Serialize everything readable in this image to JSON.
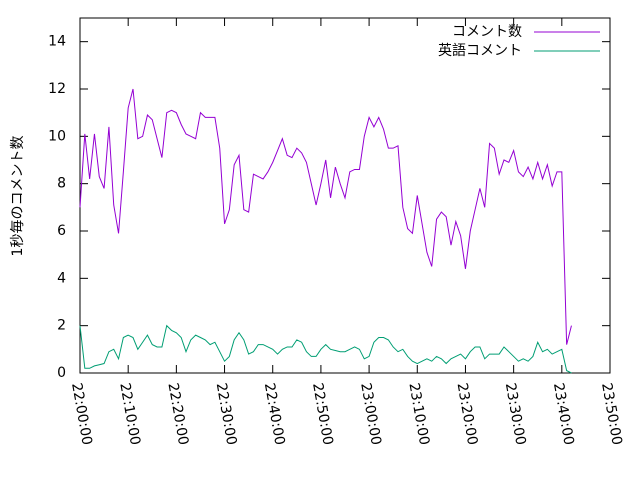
{
  "chart_data": {
    "type": "line",
    "y_label": "1秒毎のコメント数",
    "x": [
      "22:00:00",
      "22:01:00",
      "22:02:00",
      "22:03:00",
      "22:04:00",
      "22:05:00",
      "22:06:00",
      "22:07:00",
      "22:08:00",
      "22:09:00",
      "22:10:00",
      "22:11:00",
      "22:12:00",
      "22:13:00",
      "22:14:00",
      "22:15:00",
      "22:16:00",
      "22:17:00",
      "22:18:00",
      "22:19:00",
      "22:20:00",
      "22:21:00",
      "22:22:00",
      "22:23:00",
      "22:24:00",
      "22:25:00",
      "22:26:00",
      "22:27:00",
      "22:28:00",
      "22:29:00",
      "22:30:00",
      "22:31:00",
      "22:32:00",
      "22:33:00",
      "22:34:00",
      "22:35:00",
      "22:36:00",
      "22:37:00",
      "22:38:00",
      "22:39:00",
      "22:40:00",
      "22:41:00",
      "22:42:00",
      "22:43:00",
      "22:44:00",
      "22:45:00",
      "22:46:00",
      "22:47:00",
      "22:48:00",
      "22:49:00",
      "22:50:00",
      "22:51:00",
      "22:52:00",
      "22:53:00",
      "22:54:00",
      "22:55:00",
      "22:56:00",
      "22:57:00",
      "22:58:00",
      "22:59:00",
      "23:00:00",
      "23:01:00",
      "23:02:00",
      "23:03:00",
      "23:04:00",
      "23:05:00",
      "23:06:00",
      "23:07:00",
      "23:08:00",
      "23:09:00",
      "23:10:00",
      "23:11:00",
      "23:12:00",
      "23:13:00",
      "23:14:00",
      "23:15:00",
      "23:16:00",
      "23:17:00",
      "23:18:00",
      "23:19:00",
      "23:20:00",
      "23:21:00",
      "23:22:00",
      "23:23:00",
      "23:24:00",
      "23:25:00",
      "23:26:00",
      "23:27:00",
      "23:28:00",
      "23:29:00",
      "23:30:00",
      "23:31:00",
      "23:32:00",
      "23:33:00",
      "23:34:00",
      "23:35:00",
      "23:36:00",
      "23:37:00",
      "23:38:00",
      "23:39:00",
      "23:40:00",
      "23:41:00",
      "23:42:00"
    ],
    "series": [
      {
        "name": "コメント数",
        "color": "#9400d3",
        "values": [
          7.0,
          10.1,
          8.2,
          10.1,
          8.3,
          7.8,
          10.4,
          7.1,
          5.9,
          8.5,
          11.2,
          12.0,
          9.9,
          10.0,
          10.9,
          10.7,
          9.9,
          9.1,
          11.0,
          11.1,
          11.0,
          10.5,
          10.1,
          10.0,
          9.9,
          11.0,
          10.8,
          10.8,
          10.8,
          9.5,
          6.3,
          6.9,
          8.8,
          9.2,
          6.9,
          6.8,
          8.4,
          8.3,
          8.2,
          8.5,
          8.9,
          9.4,
          9.9,
          9.2,
          9.1,
          9.5,
          9.3,
          8.9,
          8.0,
          7.1,
          8.0,
          9.0,
          7.4,
          8.7,
          8.0,
          7.4,
          8.5,
          8.6,
          8.6,
          10.0,
          10.8,
          10.4,
          10.8,
          10.3,
          9.5,
          9.5,
          9.6,
          7.0,
          6.1,
          5.9,
          7.5,
          6.3,
          5.1,
          4.5,
          6.5,
          6.8,
          6.6,
          5.4,
          6.4,
          5.8,
          4.4,
          6.0,
          6.9,
          7.8,
          7.0,
          9.7,
          9.5,
          8.4,
          9.0,
          8.9,
          9.4,
          8.5,
          8.3,
          8.7,
          8.2,
          8.9,
          8.2,
          8.8,
          7.9,
          8.5,
          8.5,
          1.2,
          2.0
        ]
      },
      {
        "name": "英語コメント",
        "color": "#009e73",
        "values": [
          2.0,
          0.2,
          0.2,
          0.3,
          0.35,
          0.4,
          0.9,
          1.0,
          0.6,
          1.5,
          1.6,
          1.5,
          1.0,
          1.3,
          1.6,
          1.2,
          1.1,
          1.1,
          2.0,
          1.8,
          1.7,
          1.5,
          0.9,
          1.4,
          1.6,
          1.5,
          1.4,
          1.2,
          1.3,
          0.9,
          0.5,
          0.7,
          1.4,
          1.7,
          1.4,
          0.8,
          0.9,
          1.2,
          1.2,
          1.1,
          1.0,
          0.8,
          1.0,
          1.1,
          1.1,
          1.4,
          1.3,
          0.9,
          0.7,
          0.7,
          1.0,
          1.2,
          1.0,
          0.95,
          0.9,
          0.9,
          1.0,
          1.1,
          1.0,
          0.6,
          0.7,
          1.3,
          1.5,
          1.5,
          1.4,
          1.1,
          0.9,
          1.0,
          0.7,
          0.5,
          0.4,
          0.5,
          0.6,
          0.5,
          0.7,
          0.6,
          0.4,
          0.6,
          0.7,
          0.8,
          0.6,
          0.9,
          1.1,
          1.1,
          0.6,
          0.8,
          0.8,
          0.8,
          1.1,
          0.9,
          0.7,
          0.5,
          0.6,
          0.5,
          0.7,
          1.3,
          0.9,
          1.0,
          0.8,
          0.9,
          1.0,
          0.1,
          0.0
        ]
      }
    ],
    "xlim": [
      "22:00:00",
      "23:50:00"
    ],
    "xticks": [
      "22:00:00",
      "22:10:00",
      "22:20:00",
      "22:30:00",
      "22:40:00",
      "22:50:00",
      "23:00:00",
      "23:10:00",
      "23:20:00",
      "23:30:00",
      "23:40:00",
      "23:50:00"
    ],
    "ylim": [
      0,
      15
    ],
    "yticks": [
      0,
      2,
      4,
      6,
      8,
      10,
      12,
      14
    ],
    "grid": false,
    "legend": "top-right"
  }
}
